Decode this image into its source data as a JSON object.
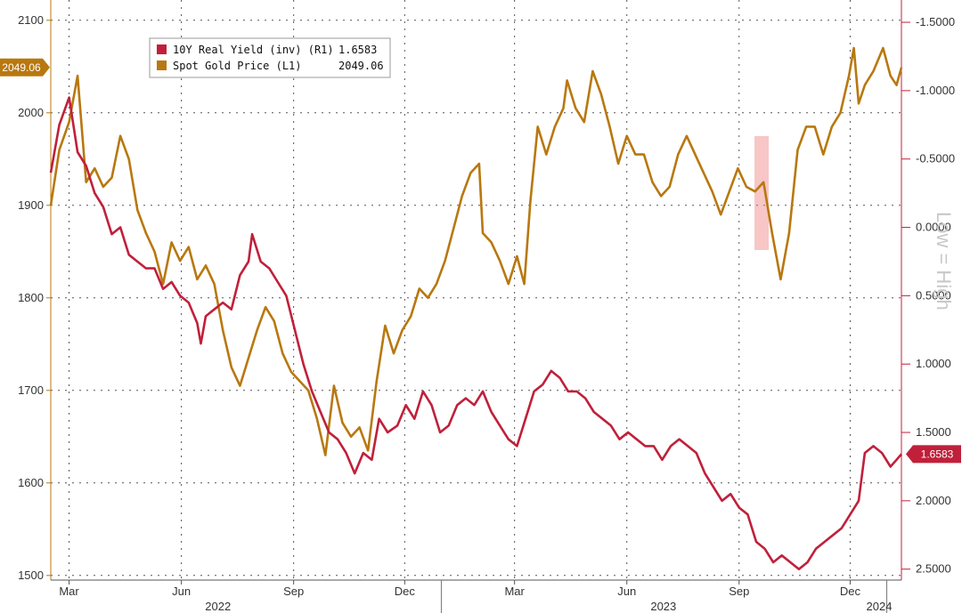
{
  "chart_data": {
    "type": "line",
    "x_start": "2022-02-14",
    "x_end": "2024-01-12",
    "x_ticks": [
      {
        "label": "Mar",
        "date": "2022-03-01"
      },
      {
        "label": "Jun",
        "date": "2022-06-01"
      },
      {
        "label": "Sep",
        "date": "2022-09-01"
      },
      {
        "label": "Dec",
        "date": "2022-12-01"
      },
      {
        "label": "Mar",
        "date": "2023-03-01"
      },
      {
        "label": "Jun",
        "date": "2023-06-01"
      },
      {
        "label": "Sep",
        "date": "2023-09-01"
      },
      {
        "label": "Dec",
        "date": "2023-12-01"
      }
    ],
    "x_years": [
      {
        "label": "2022",
        "center": "2022-07-01",
        "divider": "2022-12-31"
      },
      {
        "label": "2023",
        "center": "2023-07-01",
        "divider": "2023-12-31"
      },
      {
        "label": "2024",
        "center": "2024-01-06"
      }
    ],
    "left_axis": {
      "ticks": [
        1500,
        1600,
        1700,
        1800,
        1900,
        2000,
        2100
      ],
      "range": [
        1495,
        2120
      ]
    },
    "right_axis": {
      "inverted": true,
      "ticks": [
        "-1.5000",
        "-1.0000",
        "-0.5000",
        "0.0000",
        "0.5000",
        "1.0000",
        "1.5000",
        "2.0000",
        "2.5000"
      ],
      "range": [
        -1.65,
        2.58
      ]
    },
    "grid": true,
    "legend_position": "top-left",
    "series": [
      {
        "name": "10Y Real Yield (inv) (R1)",
        "last_value": "1.6583",
        "axis": "right",
        "color": "#c0203a",
        "points": [
          [
            "2022-02-14",
            -0.4
          ],
          [
            "2022-02-21",
            -0.75
          ],
          [
            "2022-03-01",
            -0.95
          ],
          [
            "2022-03-08",
            -0.55
          ],
          [
            "2022-03-15",
            -0.45
          ],
          [
            "2022-03-22",
            -0.25
          ],
          [
            "2022-03-29",
            -0.15
          ],
          [
            "2022-04-05",
            0.05
          ],
          [
            "2022-04-12",
            0.0
          ],
          [
            "2022-04-19",
            0.2
          ],
          [
            "2022-04-26",
            0.25
          ],
          [
            "2022-05-03",
            0.3
          ],
          [
            "2022-05-10",
            0.3
          ],
          [
            "2022-05-17",
            0.45
          ],
          [
            "2022-05-24",
            0.4
          ],
          [
            "2022-05-31",
            0.5
          ],
          [
            "2022-06-07",
            0.55
          ],
          [
            "2022-06-14",
            0.7
          ],
          [
            "2022-06-17",
            0.85
          ],
          [
            "2022-06-21",
            0.65
          ],
          [
            "2022-06-28",
            0.6
          ],
          [
            "2022-07-05",
            0.55
          ],
          [
            "2022-07-12",
            0.6
          ],
          [
            "2022-07-19",
            0.35
          ],
          [
            "2022-07-26",
            0.25
          ],
          [
            "2022-07-29",
            0.05
          ],
          [
            "2022-08-05",
            0.25
          ],
          [
            "2022-08-12",
            0.3
          ],
          [
            "2022-08-19",
            0.4
          ],
          [
            "2022-08-26",
            0.5
          ],
          [
            "2022-09-02",
            0.75
          ],
          [
            "2022-09-09",
            1.0
          ],
          [
            "2022-09-16",
            1.2
          ],
          [
            "2022-09-23",
            1.35
          ],
          [
            "2022-09-30",
            1.5
          ],
          [
            "2022-10-07",
            1.55
          ],
          [
            "2022-10-14",
            1.65
          ],
          [
            "2022-10-21",
            1.8
          ],
          [
            "2022-10-28",
            1.65
          ],
          [
            "2022-11-04",
            1.7
          ],
          [
            "2022-11-10",
            1.4
          ],
          [
            "2022-11-17",
            1.5
          ],
          [
            "2022-11-25",
            1.45
          ],
          [
            "2022-12-02",
            1.3
          ],
          [
            "2022-12-09",
            1.4
          ],
          [
            "2022-12-16",
            1.2
          ],
          [
            "2022-12-23",
            1.3
          ],
          [
            "2022-12-30",
            1.5
          ],
          [
            "2023-01-06",
            1.45
          ],
          [
            "2023-01-13",
            1.3
          ],
          [
            "2023-01-20",
            1.25
          ],
          [
            "2023-01-27",
            1.3
          ],
          [
            "2023-02-03",
            1.2
          ],
          [
            "2023-02-10",
            1.35
          ],
          [
            "2023-02-17",
            1.45
          ],
          [
            "2023-02-24",
            1.55
          ],
          [
            "2023-03-03",
            1.6
          ],
          [
            "2023-03-10",
            1.4
          ],
          [
            "2023-03-17",
            1.2
          ],
          [
            "2023-03-24",
            1.15
          ],
          [
            "2023-03-31",
            1.05
          ],
          [
            "2023-04-07",
            1.1
          ],
          [
            "2023-04-14",
            1.2
          ],
          [
            "2023-04-21",
            1.2
          ],
          [
            "2023-04-28",
            1.25
          ],
          [
            "2023-05-05",
            1.35
          ],
          [
            "2023-05-12",
            1.4
          ],
          [
            "2023-05-19",
            1.45
          ],
          [
            "2023-05-26",
            1.55
          ],
          [
            "2023-06-02",
            1.5
          ],
          [
            "2023-06-09",
            1.55
          ],
          [
            "2023-06-16",
            1.6
          ],
          [
            "2023-06-23",
            1.6
          ],
          [
            "2023-06-30",
            1.7
          ],
          [
            "2023-07-07",
            1.6
          ],
          [
            "2023-07-14",
            1.55
          ],
          [
            "2023-07-21",
            1.6
          ],
          [
            "2023-07-28",
            1.65
          ],
          [
            "2023-08-04",
            1.8
          ],
          [
            "2023-08-11",
            1.9
          ],
          [
            "2023-08-18",
            2.0
          ],
          [
            "2023-08-25",
            1.95
          ],
          [
            "2023-09-01",
            2.05
          ],
          [
            "2023-09-08",
            2.1
          ],
          [
            "2023-09-15",
            2.3
          ],
          [
            "2023-09-22",
            2.35
          ],
          [
            "2023-09-29",
            2.45
          ],
          [
            "2023-10-06",
            2.4
          ],
          [
            "2023-10-13",
            2.45
          ],
          [
            "2023-10-20",
            2.5
          ],
          [
            "2023-10-27",
            2.45
          ],
          [
            "2023-11-03",
            2.35
          ],
          [
            "2023-11-10",
            2.3
          ],
          [
            "2023-11-17",
            2.25
          ],
          [
            "2023-11-24",
            2.2
          ],
          [
            "2023-12-01",
            2.1
          ],
          [
            "2023-12-08",
            2.0
          ],
          [
            "2023-12-13",
            1.65
          ],
          [
            "2023-12-20",
            1.6
          ],
          [
            "2023-12-27",
            1.65
          ],
          [
            "2024-01-03",
            1.75
          ],
          [
            "2024-01-08",
            1.7
          ],
          [
            "2024-01-12",
            1.6583
          ]
        ]
      },
      {
        "name": "Spot Gold Price (L1)",
        "last_value": "2049.06",
        "axis": "left",
        "color": "#b8780f",
        "points": [
          [
            "2022-02-14",
            1900
          ],
          [
            "2022-02-21",
            1960
          ],
          [
            "2022-03-01",
            1990
          ],
          [
            "2022-03-08",
            2040
          ],
          [
            "2022-03-15",
            1925
          ],
          [
            "2022-03-22",
            1940
          ],
          [
            "2022-03-29",
            1920
          ],
          [
            "2022-04-05",
            1930
          ],
          [
            "2022-04-12",
            1975
          ],
          [
            "2022-04-19",
            1950
          ],
          [
            "2022-04-26",
            1895
          ],
          [
            "2022-05-03",
            1870
          ],
          [
            "2022-05-10",
            1850
          ],
          [
            "2022-05-17",
            1815
          ],
          [
            "2022-05-24",
            1860
          ],
          [
            "2022-05-31",
            1840
          ],
          [
            "2022-06-07",
            1855
          ],
          [
            "2022-06-14",
            1820
          ],
          [
            "2022-06-21",
            1835
          ],
          [
            "2022-06-28",
            1815
          ],
          [
            "2022-07-05",
            1765
          ],
          [
            "2022-07-12",
            1725
          ],
          [
            "2022-07-19",
            1705
          ],
          [
            "2022-07-26",
            1735
          ],
          [
            "2022-08-02",
            1765
          ],
          [
            "2022-08-09",
            1790
          ],
          [
            "2022-08-16",
            1775
          ],
          [
            "2022-08-23",
            1740
          ],
          [
            "2022-08-30",
            1720
          ],
          [
            "2022-09-06",
            1710
          ],
          [
            "2022-09-13",
            1700
          ],
          [
            "2022-09-20",
            1670
          ],
          [
            "2022-09-27",
            1630
          ],
          [
            "2022-10-04",
            1705
          ],
          [
            "2022-10-11",
            1665
          ],
          [
            "2022-10-18",
            1650
          ],
          [
            "2022-10-25",
            1660
          ],
          [
            "2022-11-01",
            1635
          ],
          [
            "2022-11-08",
            1710
          ],
          [
            "2022-11-15",
            1770
          ],
          [
            "2022-11-22",
            1740
          ],
          [
            "2022-11-29",
            1765
          ],
          [
            "2022-12-06",
            1780
          ],
          [
            "2022-12-13",
            1810
          ],
          [
            "2022-12-20",
            1800
          ],
          [
            "2022-12-27",
            1815
          ],
          [
            "2023-01-03",
            1840
          ],
          [
            "2023-01-10",
            1875
          ],
          [
            "2023-01-17",
            1910
          ],
          [
            "2023-01-24",
            1935
          ],
          [
            "2023-01-31",
            1945
          ],
          [
            "2023-02-03",
            1870
          ],
          [
            "2023-02-10",
            1860
          ],
          [
            "2023-02-17",
            1840
          ],
          [
            "2023-02-24",
            1815
          ],
          [
            "2023-03-03",
            1845
          ],
          [
            "2023-03-09",
            1815
          ],
          [
            "2023-03-14",
            1905
          ],
          [
            "2023-03-20",
            1985
          ],
          [
            "2023-03-27",
            1955
          ],
          [
            "2023-04-03",
            1985
          ],
          [
            "2023-04-10",
            2005
          ],
          [
            "2023-04-13",
            2035
          ],
          [
            "2023-04-20",
            2005
          ],
          [
            "2023-04-27",
            1990
          ],
          [
            "2023-05-04",
            2045
          ],
          [
            "2023-05-11",
            2020
          ],
          [
            "2023-05-18",
            1985
          ],
          [
            "2023-05-25",
            1945
          ],
          [
            "2023-06-01",
            1975
          ],
          [
            "2023-06-08",
            1955
          ],
          [
            "2023-06-15",
            1955
          ],
          [
            "2023-06-22",
            1925
          ],
          [
            "2023-06-29",
            1910
          ],
          [
            "2023-07-06",
            1920
          ],
          [
            "2023-07-13",
            1955
          ],
          [
            "2023-07-20",
            1975
          ],
          [
            "2023-07-27",
            1955
          ],
          [
            "2023-08-03",
            1935
          ],
          [
            "2023-08-10",
            1915
          ],
          [
            "2023-08-17",
            1890
          ],
          [
            "2023-08-24",
            1915
          ],
          [
            "2023-08-31",
            1940
          ],
          [
            "2023-09-07",
            1920
          ],
          [
            "2023-09-14",
            1915
          ],
          [
            "2023-09-21",
            1925
          ],
          [
            "2023-09-28",
            1870
          ],
          [
            "2023-10-05",
            1820
          ],
          [
            "2023-10-12",
            1870
          ],
          [
            "2023-10-19",
            1960
          ],
          [
            "2023-10-26",
            1985
          ],
          [
            "2023-11-02",
            1985
          ],
          [
            "2023-11-09",
            1955
          ],
          [
            "2023-11-16",
            1985
          ],
          [
            "2023-11-23",
            2000
          ],
          [
            "2023-11-30",
            2040
          ],
          [
            "2023-12-04",
            2070
          ],
          [
            "2023-12-08",
            2010
          ],
          [
            "2023-12-13",
            2030
          ],
          [
            "2023-12-20",
            2045
          ],
          [
            "2023-12-28",
            2070
          ],
          [
            "2024-01-03",
            2040
          ],
          [
            "2024-01-08",
            2030
          ],
          [
            "2024-01-12",
            2049.06
          ]
        ]
      }
    ],
    "annotations": [
      "Low = High"
    ]
  }
}
